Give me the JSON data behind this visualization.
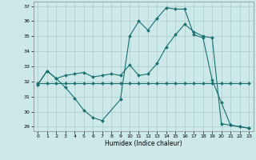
{
  "xlabel": "Humidex (Indice chaleur)",
  "bg_color": "#cce8e8",
  "line_color": "#1a7070",
  "grid_color": "#aacccc",
  "xlim": [
    -0.5,
    23.5
  ],
  "ylim": [
    28.7,
    37.3
  ],
  "yticks": [
    29,
    30,
    31,
    32,
    33,
    34,
    35,
    36,
    37
  ],
  "xticks": [
    0,
    1,
    2,
    3,
    4,
    5,
    6,
    7,
    8,
    9,
    10,
    11,
    12,
    13,
    14,
    15,
    16,
    17,
    18,
    19,
    20,
    21,
    22,
    23
  ],
  "line1_x": [
    0,
    1,
    2,
    3,
    4,
    5,
    6,
    7,
    9,
    10,
    11,
    12,
    13,
    14,
    15,
    16,
    17,
    18,
    19,
    20,
    21,
    22,
    23
  ],
  "line1_y": [
    31.8,
    32.7,
    32.2,
    31.6,
    30.9,
    30.1,
    29.6,
    29.4,
    30.8,
    35.0,
    36.0,
    35.4,
    36.2,
    36.9,
    36.8,
    36.8,
    35.1,
    34.9,
    32.1,
    30.6,
    29.1,
    29.0,
    28.9
  ],
  "line2_x": [
    0,
    1,
    2,
    3,
    4,
    5,
    6,
    7,
    8,
    9,
    10,
    11,
    12,
    13,
    14,
    15,
    16,
    17,
    18,
    19,
    20,
    21,
    22,
    23
  ],
  "line2_y": [
    31.9,
    31.9,
    31.9,
    31.9,
    31.9,
    31.9,
    31.9,
    31.9,
    31.9,
    31.9,
    31.9,
    31.9,
    31.9,
    31.9,
    31.9,
    31.9,
    31.9,
    31.9,
    31.9,
    31.9,
    31.9,
    31.9,
    31.9,
    31.9
  ],
  "line3_x": [
    0,
    1,
    2,
    3,
    4,
    5,
    6,
    7,
    8,
    9,
    10,
    11,
    12,
    13,
    14,
    15,
    16,
    17,
    18,
    19,
    20,
    21,
    22,
    23
  ],
  "line3_y": [
    31.8,
    32.7,
    32.2,
    32.4,
    32.5,
    32.6,
    32.3,
    32.4,
    32.5,
    32.4,
    33.1,
    32.4,
    32.5,
    33.2,
    34.3,
    35.1,
    35.8,
    35.3,
    35.0,
    34.9,
    29.2,
    29.1,
    29.0,
    28.9
  ]
}
